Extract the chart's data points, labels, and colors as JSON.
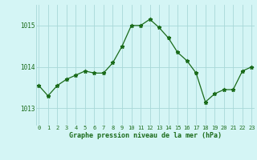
{
  "x": [
    0,
    1,
    2,
    3,
    4,
    5,
    6,
    7,
    8,
    9,
    10,
    11,
    12,
    13,
    14,
    15,
    16,
    17,
    18,
    19,
    20,
    21,
    22,
    23
  ],
  "y": [
    1013.55,
    1013.3,
    1013.55,
    1013.7,
    1013.8,
    1013.9,
    1013.85,
    1013.85,
    1014.1,
    1014.5,
    1015.0,
    1015.0,
    1015.15,
    1014.95,
    1014.7,
    1014.35,
    1014.15,
    1013.85,
    1013.15,
    1013.35,
    1013.45,
    1013.45,
    1013.9,
    1014.0
  ],
  "line_color": "#1a6b1a",
  "marker": "*",
  "bg_color": "#d4f5f5",
  "grid_color": "#a8d8d8",
  "xlabel": "Graphe pression niveau de la mer (hPa)",
  "tick_label_color": "#1a6b1a",
  "yticks": [
    1013,
    1014,
    1015
  ],
  "xtick_labels": [
    "0",
    "1",
    "2",
    "3",
    "4",
    "5",
    "6",
    "7",
    "8",
    "9",
    "10",
    "11",
    "12",
    "13",
    "14",
    "15",
    "16",
    "17",
    "18",
    "19",
    "20",
    "21",
    "22",
    "23"
  ],
  "ylim": [
    1012.6,
    1015.5
  ],
  "xlim": [
    -0.3,
    23.3
  ],
  "figsize": [
    3.2,
    2.0
  ],
  "dpi": 100
}
